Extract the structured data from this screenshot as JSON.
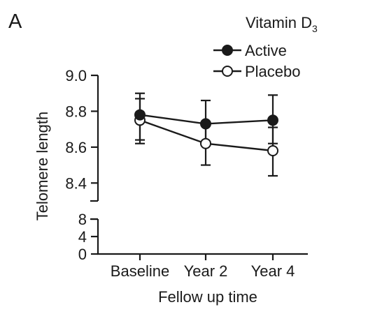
{
  "panel_label": "A",
  "chart_data": {
    "type": "line",
    "xlabel": "Fellow up time",
    "ylabel": "Telomere length",
    "categories": [
      "Baseline",
      "Year 2",
      "Year 4"
    ],
    "ylim_upper": [
      8.3,
      9.0
    ],
    "ylim_lower": [
      0,
      8
    ],
    "yticks_upper": [
      "9.0",
      "8.8",
      "8.6",
      "8.4"
    ],
    "yticks_lower": [
      "8",
      "4",
      "0"
    ],
    "yticks_upper_values": [
      9.0,
      8.8,
      8.6,
      8.4
    ],
    "yticks_lower_values": [
      8,
      4,
      0
    ],
    "axis_break": true,
    "legend": {
      "title": "Vitamin D",
      "title_subscript": "3",
      "placement": "top-right"
    },
    "series": [
      {
        "name": "Active",
        "marker": "filled-circle",
        "color": "#1a1a1a",
        "values": [
          8.78,
          8.73,
          8.75
        ],
        "err_low": [
          8.64,
          8.61,
          8.62
        ],
        "err_high": [
          8.87,
          8.86,
          8.89
        ]
      },
      {
        "name": "Placebo",
        "marker": "open-circle",
        "color": "#1a1a1a",
        "values": [
          8.75,
          8.62,
          8.58
        ],
        "err_low": [
          8.62,
          8.5,
          8.44
        ],
        "err_high": [
          8.9,
          8.73,
          8.71
        ]
      }
    ]
  }
}
